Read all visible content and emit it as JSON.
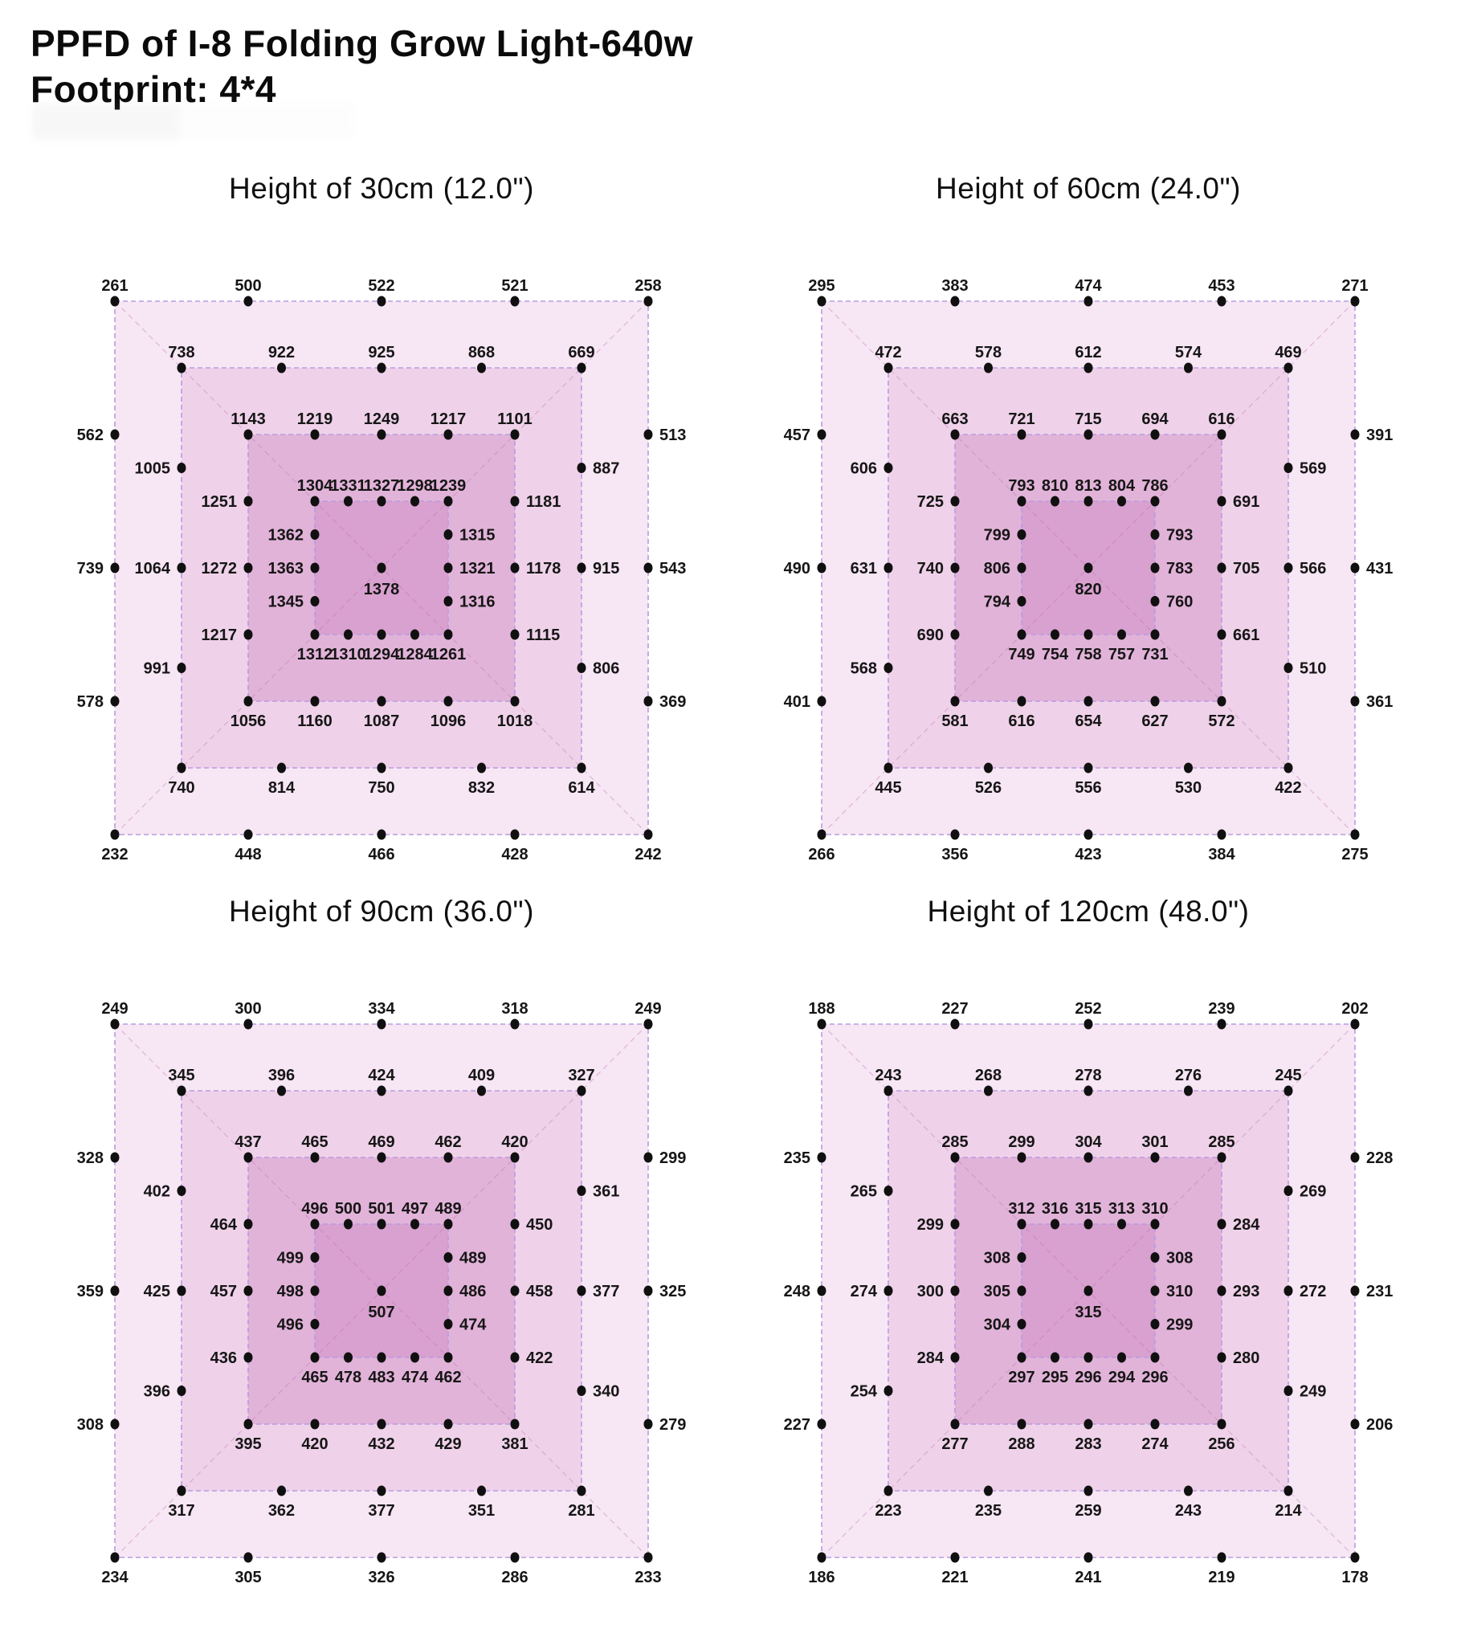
{
  "page": {
    "title_line1": "PPFD of I-8 Folding Grow Light-640w",
    "title_line2": "Footprint: 4*4"
  },
  "colors": {
    "ring_fills": [
      "#f7e6f4",
      "#efd2e9",
      "#e2b3d9",
      "#d9a1cf"
    ],
    "border": "#b79be0",
    "diagonal": "#b671ae",
    "dot": "#101010",
    "label": "#161616"
  },
  "chart_data": [
    {
      "type": "scatter",
      "title": "Height of 30cm (12.0\")",
      "xlabel": "",
      "ylabel": "",
      "grid": "nested-squares",
      "center": 1378,
      "rings": [
        {
          "top": [
            261,
            500,
            522,
            521,
            258
          ],
          "left": [
            562,
            739,
            578
          ],
          "right": [
            513,
            543,
            369
          ],
          "bottom": [
            232,
            448,
            466,
            428,
            242
          ]
        },
        {
          "top": [
            738,
            922,
            925,
            868,
            669
          ],
          "left": [
            1005,
            1064,
            991
          ],
          "right": [
            887,
            915,
            806
          ],
          "bottom": [
            740,
            814,
            750,
            832,
            614
          ]
        },
        {
          "top": [
            1143,
            1219,
            1249,
            1217,
            1101
          ],
          "left": [
            1251,
            1272,
            1217
          ],
          "right": [
            1181,
            1178,
            1115
          ],
          "bottom": [
            1056,
            1160,
            1087,
            1096,
            1018
          ]
        },
        {
          "top": [
            1304,
            1331,
            1327,
            1298,
            1239
          ],
          "left": [
            1362,
            1363,
            1345
          ],
          "right": [
            1315,
            1321,
            1316
          ],
          "bottom": [
            1312,
            1310,
            1294,
            1284,
            1261
          ]
        }
      ]
    },
    {
      "type": "scatter",
      "title": "Height of 60cm (24.0\")",
      "xlabel": "",
      "ylabel": "",
      "grid": "nested-squares",
      "center": 820,
      "rings": [
        {
          "top": [
            295,
            383,
            474,
            453,
            271
          ],
          "left": [
            457,
            490,
            401
          ],
          "right": [
            391,
            431,
            361
          ],
          "bottom": [
            266,
            356,
            423,
            384,
            275
          ]
        },
        {
          "top": [
            472,
            578,
            612,
            574,
            469
          ],
          "left": [
            606,
            631,
            568
          ],
          "right": [
            569,
            566,
            510
          ],
          "bottom": [
            445,
            526,
            556,
            530,
            422
          ]
        },
        {
          "top": [
            663,
            721,
            715,
            694,
            616
          ],
          "left": [
            725,
            740,
            690
          ],
          "right": [
            691,
            705,
            661
          ],
          "bottom": [
            581,
            616,
            654,
            627,
            572
          ]
        },
        {
          "top": [
            793,
            810,
            813,
            804,
            786
          ],
          "left": [
            799,
            806,
            794
          ],
          "right": [
            793,
            783,
            760
          ],
          "bottom": [
            749,
            754,
            758,
            757,
            731
          ]
        }
      ]
    },
    {
      "type": "scatter",
      "title": "Height of 90cm (36.0\")",
      "xlabel": "",
      "ylabel": "",
      "grid": "nested-squares",
      "center": 507,
      "rings": [
        {
          "top": [
            249,
            300,
            334,
            318,
            249
          ],
          "left": [
            328,
            359,
            308
          ],
          "right": [
            299,
            325,
            279
          ],
          "bottom": [
            234,
            305,
            326,
            286,
            233
          ]
        },
        {
          "top": [
            345,
            396,
            424,
            409,
            327
          ],
          "left": [
            402,
            425,
            396
          ],
          "right": [
            361,
            377,
            340
          ],
          "bottom": [
            317,
            362,
            377,
            351,
            281
          ]
        },
        {
          "top": [
            437,
            465,
            469,
            462,
            420
          ],
          "left": [
            464,
            457,
            436
          ],
          "right": [
            450,
            458,
            422
          ],
          "bottom": [
            395,
            420,
            432,
            429,
            381
          ]
        },
        {
          "top": [
            496,
            500,
            501,
            497,
            489
          ],
          "left": [
            499,
            498,
            496
          ],
          "right": [
            489,
            486,
            474
          ],
          "bottom": [
            465,
            478,
            483,
            474,
            462
          ]
        }
      ]
    },
    {
      "type": "scatter",
      "title": "Height of 120cm (48.0\")",
      "xlabel": "",
      "ylabel": "",
      "grid": "nested-squares",
      "center": 315,
      "rings": [
        {
          "top": [
            188,
            227,
            252,
            239,
            202
          ],
          "left": [
            235,
            248,
            227
          ],
          "right": [
            228,
            231,
            206
          ],
          "bottom": [
            186,
            221,
            241,
            219,
            178
          ]
        },
        {
          "top": [
            243,
            268,
            278,
            276,
            245
          ],
          "left": [
            265,
            274,
            254
          ],
          "right": [
            269,
            272,
            249
          ],
          "bottom": [
            223,
            235,
            259,
            243,
            214
          ]
        },
        {
          "top": [
            285,
            299,
            304,
            301,
            285
          ],
          "left": [
            299,
            300,
            284
          ],
          "right": [
            284,
            293,
            280
          ],
          "bottom": [
            277,
            288,
            283,
            274,
            256
          ]
        },
        {
          "top": [
            312,
            316,
            315,
            313,
            310
          ],
          "left": [
            308,
            305,
            304
          ],
          "right": [
            308,
            310,
            299
          ],
          "bottom": [
            297,
            295,
            296,
            294,
            296
          ]
        }
      ]
    }
  ]
}
